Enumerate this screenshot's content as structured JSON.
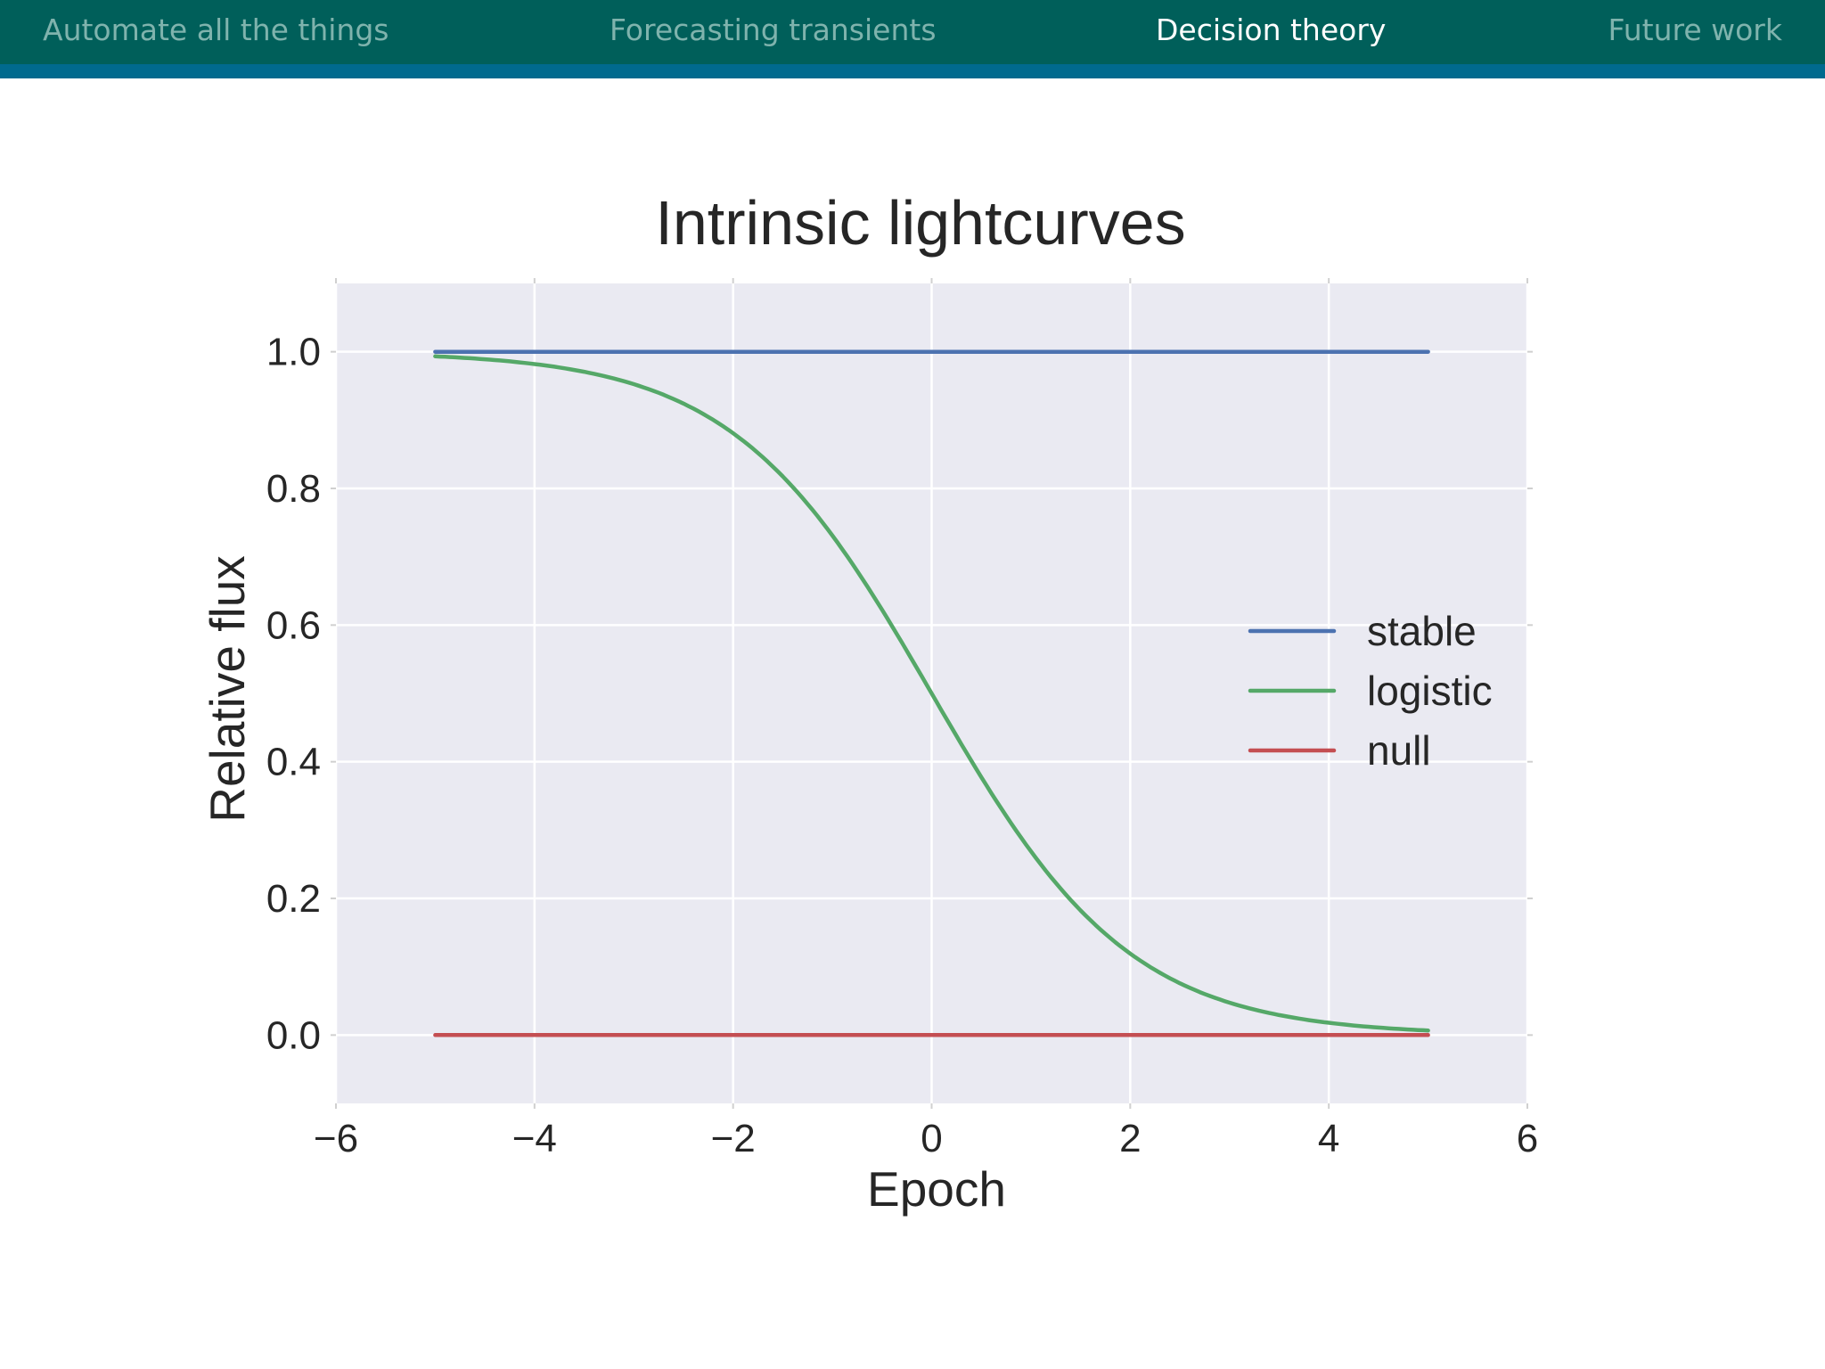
{
  "nav": {
    "items": [
      {
        "label": "Automate all the things",
        "active": false
      },
      {
        "label": "Forecasting transients",
        "active": false
      },
      {
        "label": "Decision theory",
        "active": true
      },
      {
        "label": "Future work",
        "active": false
      }
    ],
    "bar_color": "#005f5a",
    "strip_color": "#006a8e"
  },
  "chart_data": {
    "type": "line",
    "title": "Intrinsic lightcurves",
    "xlabel": "Epoch",
    "ylabel": "Relative flux",
    "xlim": [
      -6,
      6
    ],
    "ylim": [
      -0.1,
      1.1
    ],
    "xticks": [
      -6,
      -4,
      -2,
      0,
      2,
      4,
      6
    ],
    "xtick_labels": [
      "−6",
      "−4",
      "−2",
      "0",
      "2",
      "4",
      "6"
    ],
    "yticks": [
      0.0,
      0.2,
      0.4,
      0.6,
      0.8,
      1.0
    ],
    "ytick_labels": [
      "0.0",
      "0.2",
      "0.4",
      "0.6",
      "0.8",
      "1.0"
    ],
    "grid": true,
    "legend_position": "center-right",
    "background": "#eaeaf2",
    "series": [
      {
        "name": "stable",
        "color": "#4c72b0",
        "x": [
          -5,
          -4,
          -3,
          -2,
          -1,
          0,
          1,
          2,
          3,
          4,
          5
        ],
        "y": [
          1,
          1,
          1,
          1,
          1,
          1,
          1,
          1,
          1,
          1,
          1
        ]
      },
      {
        "name": "logistic",
        "color": "#55a868",
        "x": [
          -5,
          -4.5,
          -4,
          -3.5,
          -3,
          -2.5,
          -2,
          -1.5,
          -1,
          -0.5,
          0,
          0.5,
          1,
          1.5,
          2,
          2.5,
          3,
          3.5,
          4,
          4.5,
          5
        ],
        "y": [
          0.993,
          0.989,
          0.982,
          0.971,
          0.953,
          0.924,
          0.881,
          0.818,
          0.731,
          0.622,
          0.5,
          0.378,
          0.269,
          0.182,
          0.119,
          0.076,
          0.047,
          0.029,
          0.018,
          0.011,
          0.007
        ]
      },
      {
        "name": "null",
        "color": "#c44e52",
        "x": [
          -5,
          -4,
          -3,
          -2,
          -1,
          0,
          1,
          2,
          3,
          4,
          5
        ],
        "y": [
          0,
          0,
          0,
          0,
          0,
          0,
          0,
          0,
          0,
          0,
          0
        ]
      }
    ]
  }
}
